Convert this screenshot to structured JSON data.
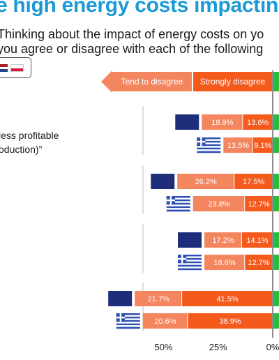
{
  "header": {
    "title": "e high energy costs impacting",
    "subtitle_line1": "Thinking about the impact of energy costs on yo",
    "subtitle_line2": "you agree or disagree with each of the following"
  },
  "legend": {
    "tend_disagree": "Tend to disagree",
    "strongly_disagree": "Strongly disagree"
  },
  "row_label": {
    "line1": "less profitable",
    "line2": "oduction)”"
  },
  "colors": {
    "title": "#1b9ad6",
    "tend_disagree": "#f4865f",
    "strongly_disagree": "#f55a1d",
    "agree": "#2bba3a",
    "eu_flag": "#1f2e7a",
    "greece_flag": "#2d4fb3"
  },
  "chart_data": {
    "type": "bar",
    "orientation": "horizontal-diverging",
    "x_axis": {
      "ticks": [
        "50%",
        "25%",
        "0%"
      ],
      "tick_values": [
        50,
        25,
        0
      ]
    },
    "series_names": [
      "Tend to disagree",
      "Strongly disagree"
    ],
    "groups": [
      {
        "rows": [
          {
            "flag": "eu",
            "tend_disagree": 18.9,
            "strongly_disagree": 13.6,
            "labels": [
              "18.9%",
              "13.6%"
            ]
          },
          {
            "flag": "greece",
            "tend_disagree": 13.5,
            "strongly_disagree": 9.1,
            "labels": [
              "13.5%",
              "9.1%"
            ]
          }
        ]
      },
      {
        "rows": [
          {
            "flag": "eu",
            "tend_disagree": 26.2,
            "strongly_disagree": 17.5,
            "labels": [
              "26.2%",
              "17.5%"
            ]
          },
          {
            "flag": "greece",
            "tend_disagree": 23.8,
            "strongly_disagree": 12.7,
            "labels": [
              "23.8%",
              "12.7%"
            ]
          }
        ]
      },
      {
        "rows": [
          {
            "flag": "eu",
            "tend_disagree": 17.2,
            "strongly_disagree": 14.1,
            "labels": [
              "17.2%",
              "14.1%"
            ]
          },
          {
            "flag": "greece",
            "tend_disagree": 18.6,
            "strongly_disagree": 12.7,
            "labels": [
              "18.6%",
              "12.7%"
            ]
          }
        ]
      },
      {
        "rows": [
          {
            "flag": "eu",
            "tend_disagree": 21.7,
            "strongly_disagree": 41.5,
            "labels": [
              "21.7%",
              "41.5%"
            ]
          },
          {
            "flag": "greece",
            "tend_disagree": 20.6,
            "strongly_disagree": 38.9,
            "labels": [
              "20.6%",
              "38.9%"
            ]
          }
        ]
      }
    ]
  }
}
